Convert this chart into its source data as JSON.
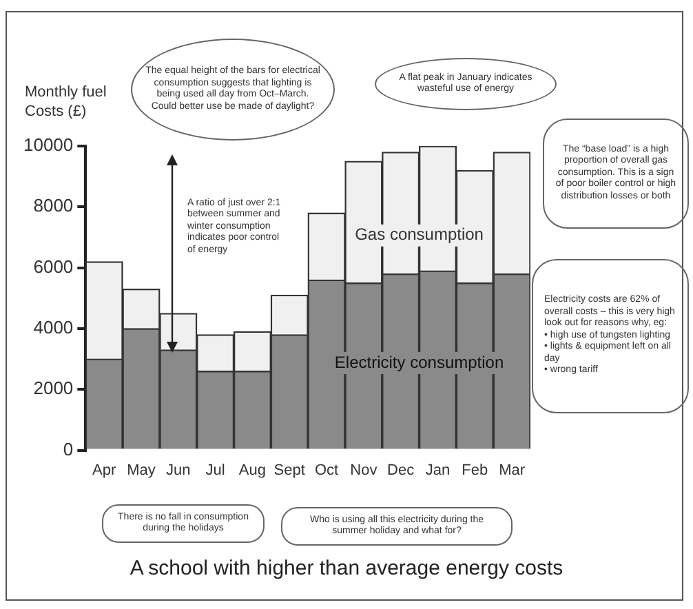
{
  "chart_data": {
    "type": "bar",
    "stacked": true,
    "title": "A school with higher than average energy costs",
    "ylabel": "Monthly fuel Costs (£)",
    "categories": [
      "Apr",
      "May",
      "Jun",
      "Jul",
      "Aug",
      "Sept",
      "Oct",
      "Nov",
      "Dec",
      "Jan",
      "Feb",
      "Mar"
    ],
    "series": [
      {
        "name": "Electricity consumption",
        "color": "#8a8a8a",
        "values": [
          3000,
          4000,
          3300,
          2600,
          2600,
          3800,
          5600,
          5500,
          5800,
          5900,
          5500,
          5800
        ]
      },
      {
        "name": "Gas consumption",
        "color": "#f0f0f0",
        "values": [
          3200,
          1300,
          1200,
          1200,
          1300,
          1300,
          2200,
          4000,
          4000,
          4100,
          3700,
          4000
        ]
      }
    ],
    "ylim": [
      0,
      10000
    ],
    "yticks": [
      0,
      2000,
      4000,
      6000,
      8000,
      10000
    ],
    "grid": false,
    "legend": false,
    "annotations": [
      "The equal height of the bars for electrical consumption suggests that lighting is being used all day from Oct–March. Could better use be made of daylight?",
      "A flat peak in January indicates wasteful use of energy",
      "The “base load” is a high proportion of overall gas consumption. This is a sign of poor boiler control or high distribution losses or both",
      "A ratio of just over 2:1 between summer and winter consumption indicates poor control of energy",
      "Electricity costs are 62% of overall costs – this is very high look out for reasons why, eg:\n• high use of tungsten lighting\n• lights & equipment left on all day\n• wrong tariff",
      "There is no fall in consumption during the holidays",
      "Who is using all this electricity during the summer holiday and what for?"
    ]
  }
}
